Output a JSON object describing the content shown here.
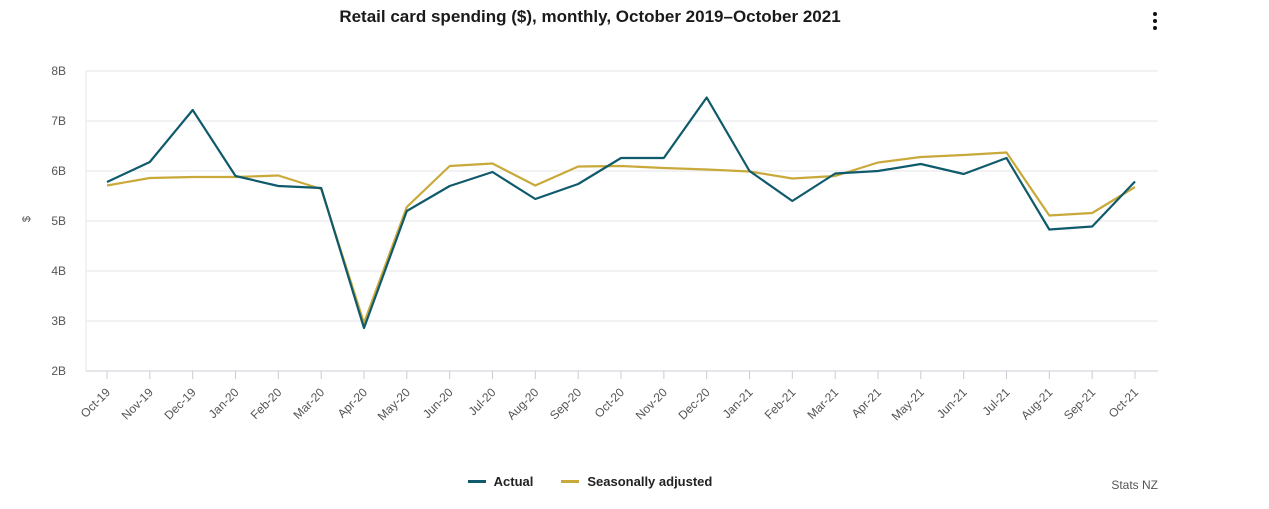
{
  "chart_data": {
    "type": "line",
    "title": "Retail card spending ($), monthly, October 2019–October 2021",
    "xlabel": "",
    "ylabel": "$",
    "ylim": [
      2,
      8
    ],
    "ytick_values": [
      2,
      3,
      4,
      5,
      6,
      7,
      8
    ],
    "ytick_labels": [
      "2B",
      "3B",
      "4B",
      "5B",
      "6B",
      "7B",
      "8B"
    ],
    "grid": true,
    "legend_position": "bottom",
    "categories": [
      "Oct-19",
      "Nov-19",
      "Dec-19",
      "Jan-20",
      "Feb-20",
      "Mar-20",
      "Apr-20",
      "May-20",
      "Jun-20",
      "Jul-20",
      "Aug-20",
      "Sep-20",
      "Oct-20",
      "Nov-20",
      "Dec-20",
      "Jan-21",
      "Feb-21",
      "Mar-21",
      "Apr-21",
      "May-21",
      "Jun-21",
      "Jul-21",
      "Aug-21",
      "Sep-21",
      "Oct-21"
    ],
    "series": [
      {
        "name": "Actual",
        "color": "#0f5a6b",
        "values": [
          5.78,
          6.18,
          7.22,
          5.9,
          5.7,
          5.66,
          2.86,
          5.2,
          5.7,
          5.98,
          5.44,
          5.74,
          6.26,
          6.26,
          7.47,
          6.0,
          5.4,
          5.95,
          6.0,
          6.14,
          5.94,
          6.26,
          4.83,
          4.89,
          5.79
        ]
      },
      {
        "name": "Seasonally adjusted",
        "color": "#c9a93a",
        "values": [
          5.71,
          5.86,
          5.88,
          5.88,
          5.91,
          5.64,
          2.96,
          5.28,
          6.1,
          6.15,
          5.71,
          6.09,
          6.1,
          6.06,
          6.03,
          5.99,
          5.85,
          5.9,
          6.17,
          6.28,
          6.32,
          6.37,
          5.11,
          5.16,
          5.68
        ]
      }
    ]
  },
  "ui": {
    "menu_icon": "vertical-ellipsis-icon",
    "credit": "Stats NZ"
  }
}
